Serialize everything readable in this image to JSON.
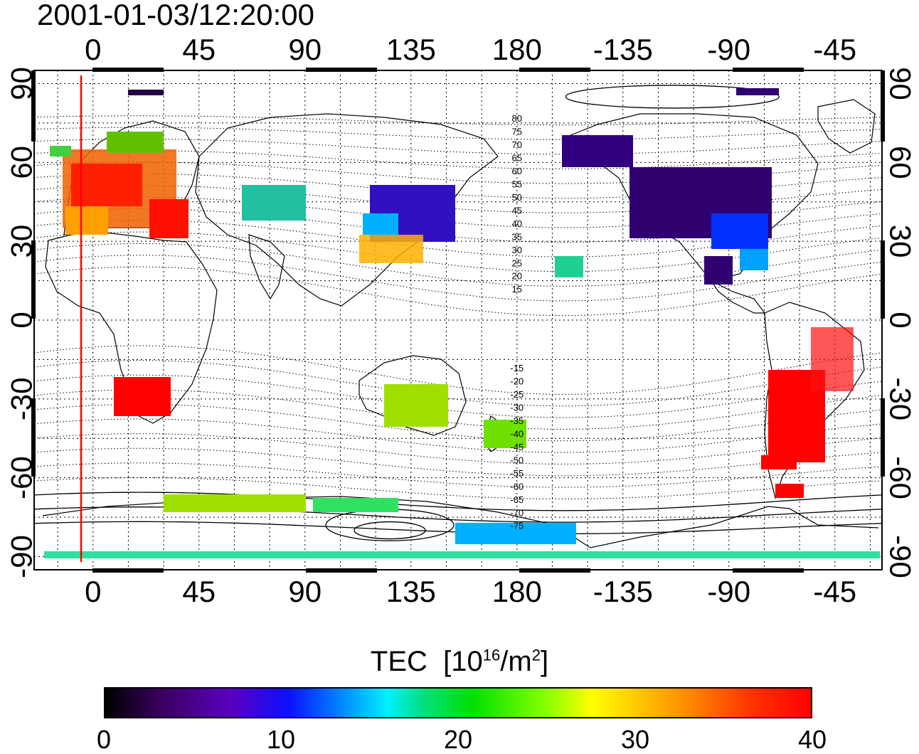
{
  "timestamp": "2001-01-03/12:20:00",
  "map": {
    "x_tick_labels": [
      "0",
      "45",
      "90",
      "135",
      "180",
      "-135",
      "-90",
      "-45"
    ],
    "y_tick_labels": [
      "90",
      "60",
      "30",
      "0",
      "-30",
      "-60",
      "-90"
    ],
    "mlat_labels_north": [
      "80",
      "75",
      "70",
      "65",
      "60",
      "55",
      "50",
      "45",
      "40",
      "35",
      "30",
      "25",
      "20",
      "15"
    ],
    "mlat_labels_south": [
      "-15",
      "-20",
      "-25",
      "-30",
      "-35",
      "-40",
      "-45",
      "-50",
      "-55",
      "-60",
      "-65",
      "-70",
      "-75"
    ],
    "terminator_color": "#ff0000",
    "lon_range": [
      -25,
      335
    ],
    "lat_range": [
      -95,
      95
    ]
  },
  "colorbar": {
    "title": "TEC",
    "unit_base": "[10",
    "unit_exp": "16",
    "unit_mid": "/m",
    "unit_exp2": "2",
    "unit_end": "]",
    "tick_labels": [
      "0",
      "10",
      "20",
      "30",
      "40"
    ],
    "min": 0,
    "max": 40
  }
}
